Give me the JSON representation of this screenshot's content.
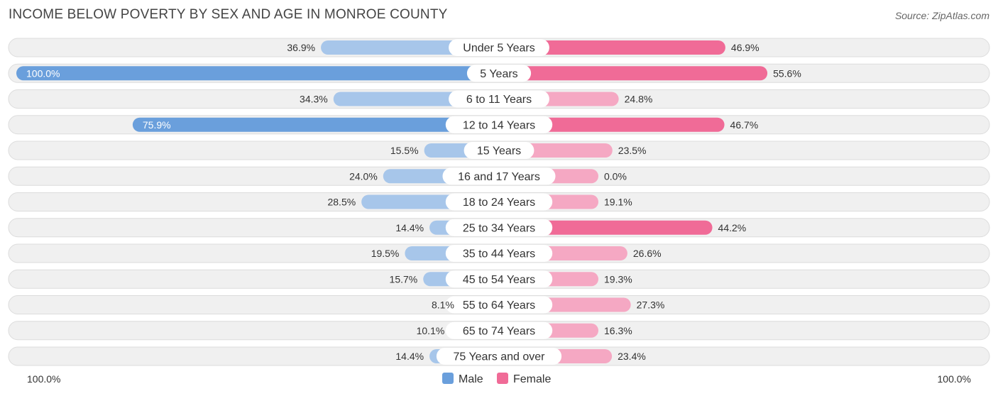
{
  "title": "INCOME BELOW POVERTY BY SEX AND AGE IN MONROE COUNTY",
  "source": "Source: ZipAtlas.com",
  "colors": {
    "male_strong": "#6a9fdc",
    "male_light": "#a7c6ea",
    "female_strong": "#f06b97",
    "female_light": "#f5a8c3",
    "track": "#f0f0f0",
    "track_border": "#dcdcdc"
  },
  "chart_data": {
    "type": "bar",
    "orientation": "horizontal-diverging",
    "title": "INCOME BELOW POVERTY BY SEX AND AGE IN MONROE COUNTY",
    "categories": [
      "Under 5 Years",
      "5 Years",
      "6 to 11 Years",
      "12 to 14 Years",
      "15 Years",
      "16 and 17 Years",
      "18 to 24 Years",
      "25 to 34 Years",
      "35 to 44 Years",
      "45 to 54 Years",
      "55 to 64 Years",
      "65 to 74 Years",
      "75 Years and over"
    ],
    "series": [
      {
        "name": "Male",
        "values": [
          36.9,
          100.0,
          34.3,
          75.9,
          15.5,
          24.0,
          28.5,
          14.4,
          19.5,
          15.7,
          8.1,
          10.1,
          14.4
        ],
        "labels": [
          "36.9%",
          "100.0%",
          "34.3%",
          "75.9%",
          "15.5%",
          "24.0%",
          "28.5%",
          "14.4%",
          "19.5%",
          "15.7%",
          "8.1%",
          "10.1%",
          "14.4%"
        ]
      },
      {
        "name": "Female",
        "values": [
          46.9,
          55.6,
          24.8,
          46.7,
          23.5,
          0.0,
          19.1,
          44.2,
          26.6,
          19.3,
          27.3,
          16.3,
          23.4
        ],
        "labels": [
          "46.9%",
          "55.6%",
          "24.8%",
          "46.7%",
          "23.5%",
          "0.0%",
          "19.1%",
          "44.2%",
          "26.6%",
          "19.3%",
          "27.3%",
          "16.3%",
          "23.4%"
        ]
      }
    ],
    "xlim": [
      0,
      100
    ],
    "axis_left_label": "100.0%",
    "axis_right_label": "100.0%",
    "legend": [
      "Male",
      "Female"
    ],
    "legend_position": "bottom-center"
  }
}
